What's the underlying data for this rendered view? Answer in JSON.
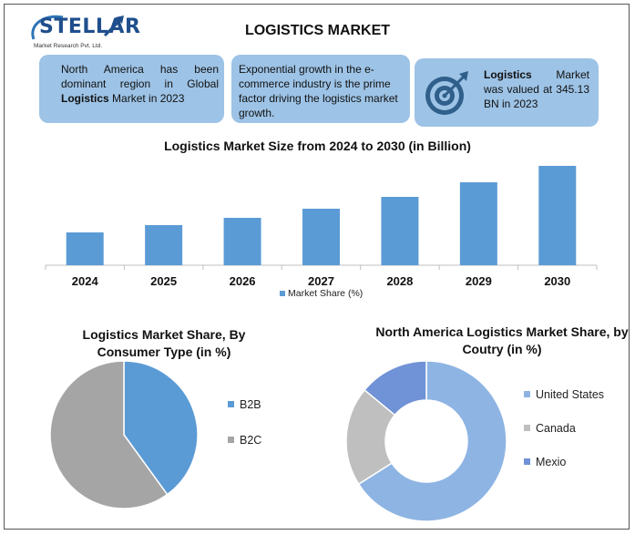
{
  "brand": {
    "name": "STELLAR",
    "tagline": "Market Research Pvt. Ltd."
  },
  "header": {
    "title": "LOGISTICS MARKET"
  },
  "info_boxes": [
    {
      "pre": "North America has been dominant region in Global ",
      "bold": "Logistics",
      "post": " Market in 2023"
    },
    {
      "pre": "Exponential growth in the e-commerce industry is the prime factor driving the logistics market growth.",
      "bold": "",
      "post": ""
    },
    {
      "pre": "",
      "bold": "Logistics",
      "post": " Market was valued at 345.13 BN in 2023"
    }
  ],
  "icons": {
    "target": "target-icon"
  },
  "colors": {
    "bar": "#5b9bd5",
    "b2b": "#5b9bd5",
    "b2c": "#a5a5a5",
    "us": "#8eb4e3",
    "canada": "#bfbfbf",
    "mexico": "#7092d6",
    "box": "#9dc3e6"
  },
  "chart_data": [
    {
      "type": "bar",
      "title": "Logistics Market Size from 2024 to 2030 (in Billion)",
      "categories": [
        "2024",
        "2025",
        "2026",
        "2027",
        "2028",
        "2029",
        "2030"
      ],
      "series": [
        {
          "name": "Market Share (%)",
          "values": [
            36,
            44,
            52,
            62,
            75,
            91,
            109
          ]
        }
      ],
      "ylim": [
        0,
        120
      ],
      "grid": false,
      "legend": "bottom"
    },
    {
      "type": "pie",
      "title": "Logistics Market Share, By Consumer Type (in %)",
      "labels": [
        "B2B",
        "B2C"
      ],
      "values": [
        40,
        60
      ],
      "legend": "right"
    },
    {
      "type": "pie",
      "title": "North America Logistics Market Share, by Coutry (in %)",
      "labels": [
        "United States",
        "Canada",
        "Mexio"
      ],
      "values": [
        66,
        20,
        14
      ],
      "legend": "right"
    }
  ]
}
